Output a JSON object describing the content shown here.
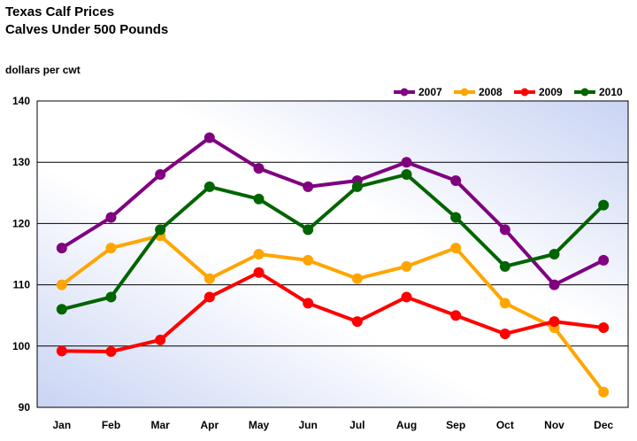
{
  "chart_data": {
    "type": "line",
    "title": "Texas Calf Prices",
    "subtitle": "Calves Under 500 Pounds",
    "ylabel": "dollars per cwt",
    "xlabel": "",
    "ylim": [
      90,
      140
    ],
    "yticks": [
      90,
      100,
      110,
      120,
      130,
      140
    ],
    "grid": "horizontal",
    "legend_position": "top-right",
    "categories": [
      "Jan",
      "Feb",
      "Mar",
      "Apr",
      "May",
      "Jun",
      "Jul",
      "Aug",
      "Sep",
      "Oct",
      "Nov",
      "Dec"
    ],
    "series": [
      {
        "name": "2007",
        "color": "#800080",
        "values": [
          116,
          121,
          128,
          134,
          129,
          126,
          127,
          130,
          127,
          119,
          110,
          114
        ]
      },
      {
        "name": "2008",
        "color": "#FFA500",
        "values": [
          110,
          116,
          118,
          111,
          115,
          114,
          111,
          113,
          116,
          107,
          103,
          92.5
        ]
      },
      {
        "name": "2009",
        "color": "#FF0000",
        "values": [
          99.2,
          99.1,
          101,
          108,
          112,
          107,
          104,
          108,
          105,
          102,
          104,
          103
        ]
      },
      {
        "name": "2010",
        "color": "#006400",
        "values": [
          106,
          108,
          119,
          126,
          124,
          119,
          126,
          128,
          121,
          113,
          115,
          123
        ]
      }
    ]
  }
}
